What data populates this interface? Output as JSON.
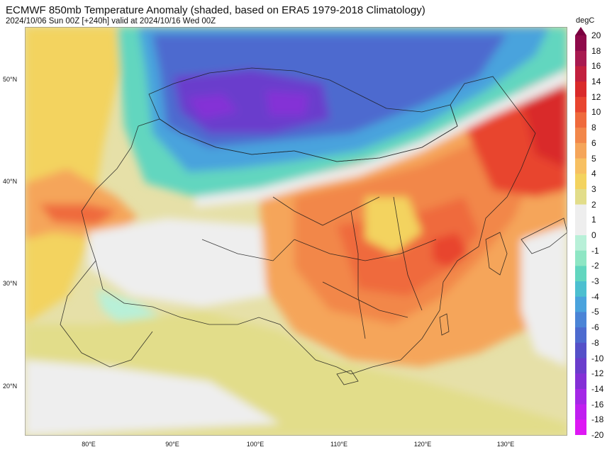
{
  "title": "ECMWF 850mb Temperature Anomaly (shaded, based on ERA5 1979-2018 Climatology)",
  "subtitle": "2024/10/06 Sun 00Z [+240h] valid at 2024/10/16 Wed 00Z",
  "colorbar": {
    "unit": "degC",
    "labels": [
      "20",
      "18",
      "16",
      "14",
      "12",
      "10",
      "8",
      "6",
      "5",
      "4",
      "3",
      "2",
      "1",
      "0",
      "-1",
      "-2",
      "-3",
      "-4",
      "-5",
      "-6",
      "-8",
      "-10",
      "-12",
      "-14",
      "-16",
      "-18",
      "-20"
    ],
    "colors": [
      "#7a0040",
      "#8e0a4a",
      "#a81a50",
      "#c2203e",
      "#d92a2a",
      "#e8452f",
      "#ef6a3c",
      "#f2874a",
      "#f5a55a",
      "#f7c062",
      "#f3d35f",
      "#e2dd8a",
      "#eeeeee",
      "#eeeeee",
      "#b8f0d8",
      "#8ee6c4",
      "#62d6bf",
      "#4cbfd0",
      "#4aa3dd",
      "#4b84d6",
      "#4d6bcf",
      "#5550c8",
      "#6a3dcc",
      "#8430d6",
      "#a428e6",
      "#c01ff0",
      "#de18f4"
    ]
  },
  "lat_labels": [
    "50°N",
    "40°N",
    "30°N",
    "20°N"
  ],
  "lon_labels": [
    "80°E",
    "90°E",
    "100°E",
    "110°E",
    "120°E",
    "130°E"
  ],
  "regions": [
    {
      "name": "cold-anomaly-mongolia",
      "color": "#4b84d6"
    },
    {
      "name": "cold-core",
      "color": "#6a3dcc"
    },
    {
      "name": "warm-anomaly-china",
      "color": "#f2874a"
    },
    {
      "name": "warm-anomaly-manchuria",
      "color": "#d92a2a"
    }
  ]
}
